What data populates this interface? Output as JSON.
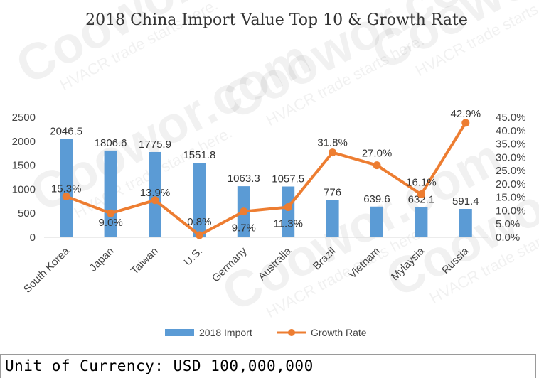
{
  "chart_data": {
    "type": "bar",
    "title": "2018 China Import Value Top 10 & Growth Rate",
    "categories": [
      "South Korea",
      "Japan",
      "Taiwan",
      "U.S.",
      "Germany",
      "Australia",
      "Brazil",
      "Vietnam",
      "Mylaysia",
      "Russia"
    ],
    "series": [
      {
        "name": "2018 Import",
        "type": "bar",
        "axis": "left",
        "color": "#5b9bd5",
        "values": [
          2046.5,
          1806.6,
          1775.9,
          1551.8,
          1063.3,
          1057.5,
          776,
          639.6,
          632.1,
          591.4
        ],
        "labels": [
          "2046.5",
          "1806.6",
          "1775.9",
          "1551.8",
          "1063.3",
          "1057.5",
          "776",
          "639.6",
          "632.1",
          "591.4"
        ]
      },
      {
        "name": "Growth Rate",
        "type": "line",
        "axis": "right",
        "color": "#ed7d31",
        "values": [
          15.3,
          9.0,
          13.9,
          0.8,
          9.7,
          11.3,
          31.8,
          27.0,
          16.1,
          42.9
        ],
        "labels": [
          "15.3%",
          "9.0%",
          "13.9%",
          "0.8%",
          "9.7%",
          "11.3%",
          "31.8%",
          "27.0%",
          "16.1%",
          "42.9%"
        ]
      }
    ],
    "y_left": {
      "min": 0,
      "max": 2500,
      "ticks": [
        "0",
        "500",
        "1000",
        "1500",
        "2000",
        "2500"
      ]
    },
    "y_right": {
      "min": 0,
      "max": 45,
      "ticks": [
        "0.0%",
        "5.0%",
        "10.0%",
        "15.0%",
        "20.0%",
        "25.0%",
        "30.0%",
        "35.0%",
        "40.0%",
        "45.0%"
      ]
    },
    "grid": false,
    "legend_position": "bottom"
  },
  "footer_text": "Unit of Currency: USD 100,000,000",
  "watermark": {
    "brand": "Coowor.com",
    "slogan": "HVACR trade starts here."
  }
}
